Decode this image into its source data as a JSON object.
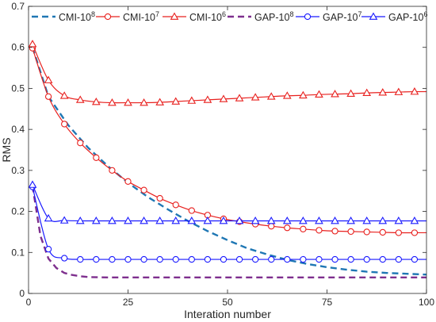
{
  "chart_data": {
    "type": "line",
    "title": "",
    "xlabel": "Interation number",
    "ylabel": "RMS",
    "xlim": [
      0,
      100
    ],
    "ylim": [
      0,
      0.7
    ],
    "xticks": [
      0,
      25,
      50,
      75,
      100
    ],
    "yticks": [
      0,
      0.1,
      0.2,
      0.3,
      0.4,
      0.5,
      0.6,
      0.7
    ],
    "grid": false,
    "legend_position": "top",
    "series": [
      {
        "name": "CMI-10",
        "sup": "8",
        "color": "#1f77b4",
        "style": "dashed",
        "marker": "none",
        "x": [
          1,
          5,
          10,
          15,
          20,
          25,
          30,
          35,
          40,
          45,
          50,
          55,
          60,
          65,
          70,
          75,
          80,
          85,
          90,
          95,
          100
        ],
        "y": [
          0.6,
          0.48,
          0.41,
          0.355,
          0.31,
          0.27,
          0.235,
          0.205,
          0.177,
          0.152,
          0.13,
          0.11,
          0.095,
          0.082,
          0.072,
          0.064,
          0.058,
          0.053,
          0.05,
          0.048,
          0.046
        ]
      },
      {
        "name": "CMI-10",
        "sup": "7",
        "color": "#e8201e",
        "style": "solid",
        "marker": "circle",
        "x": [
          1,
          5,
          9,
          13,
          17,
          21,
          25,
          29,
          33,
          37,
          41,
          45,
          49,
          53,
          57,
          61,
          65,
          69,
          73,
          77,
          81,
          85,
          89,
          93,
          97
        ],
        "y": [
          0.598,
          0.48,
          0.413,
          0.367,
          0.331,
          0.3,
          0.273,
          0.252,
          0.232,
          0.216,
          0.202,
          0.191,
          0.182,
          0.175,
          0.169,
          0.164,
          0.16,
          0.157,
          0.154,
          0.152,
          0.151,
          0.15,
          0.149,
          0.148,
          0.148
        ]
      },
      {
        "name": "CMI-10",
        "sup": "6",
        "color": "#e8201e",
        "style": "solid",
        "marker": "triangle",
        "x": [
          1,
          5,
          9,
          13,
          17,
          21,
          25,
          29,
          33,
          37,
          41,
          45,
          49,
          53,
          57,
          61,
          65,
          69,
          73,
          77,
          81,
          85,
          89,
          93,
          97
        ],
        "y": [
          0.608,
          0.52,
          0.482,
          0.472,
          0.467,
          0.465,
          0.465,
          0.465,
          0.466,
          0.468,
          0.47,
          0.472,
          0.474,
          0.476,
          0.478,
          0.48,
          0.482,
          0.483,
          0.485,
          0.486,
          0.487,
          0.489,
          0.49,
          0.491,
          0.492
        ]
      },
      {
        "name": "GAP-10",
        "sup": "8",
        "color": "#7e2f8e",
        "style": "dashed",
        "marker": "none",
        "x": [
          1,
          3,
          5,
          7,
          9,
          11,
          13,
          15,
          20,
          30,
          40,
          50,
          60,
          70,
          80,
          90,
          100
        ],
        "y": [
          0.262,
          0.14,
          0.085,
          0.062,
          0.05,
          0.045,
          0.042,
          0.04,
          0.039,
          0.039,
          0.039,
          0.039,
          0.039,
          0.039,
          0.039,
          0.039,
          0.039
        ]
      },
      {
        "name": "GAP-10",
        "sup": "7",
        "color": "#1a1aff",
        "style": "solid",
        "marker": "circle",
        "x": [
          1,
          5,
          9,
          13,
          17,
          21,
          25,
          29,
          33,
          37,
          41,
          45,
          49,
          53,
          57,
          61,
          65,
          69,
          73,
          77,
          81,
          85,
          89,
          93,
          97
        ],
        "y": [
          0.26,
          0.108,
          0.086,
          0.083,
          0.083,
          0.083,
          0.083,
          0.083,
          0.083,
          0.083,
          0.083,
          0.083,
          0.083,
          0.083,
          0.083,
          0.083,
          0.083,
          0.083,
          0.083,
          0.083,
          0.083,
          0.083,
          0.083,
          0.083,
          0.083
        ]
      },
      {
        "name": "GAP-10",
        "sup": "6",
        "color": "#1a1aff",
        "style": "solid",
        "marker": "triangle",
        "x": [
          1,
          5,
          9,
          13,
          17,
          21,
          25,
          29,
          33,
          37,
          41,
          45,
          49,
          53,
          57,
          61,
          65,
          69,
          73,
          77,
          81,
          85,
          89,
          93,
          97
        ],
        "y": [
          0.265,
          0.183,
          0.178,
          0.177,
          0.177,
          0.177,
          0.177,
          0.177,
          0.177,
          0.177,
          0.177,
          0.177,
          0.177,
          0.177,
          0.177,
          0.177,
          0.177,
          0.177,
          0.177,
          0.177,
          0.177,
          0.177,
          0.177,
          0.177,
          0.177
        ]
      }
    ]
  }
}
